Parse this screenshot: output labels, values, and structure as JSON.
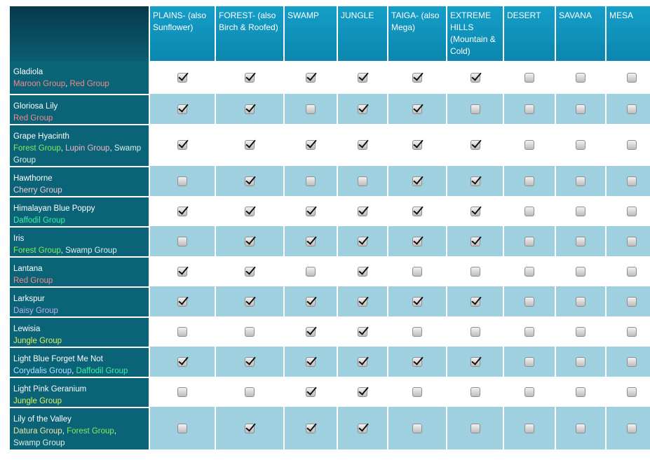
{
  "biomes": [
    "PLAINS- (also Sunflower)",
    "FOREST- (also Birch & Roofed)",
    "SWAMP",
    "JUNGLE",
    "TAIGA- (also Mega)",
    "EXTREME HILLS (Mountain & Cold)",
    "DESERT",
    "SAVANA",
    "MESA"
  ],
  "group_colors": {
    "Maroon Group": "#f08a8a",
    "Red Group": "#f08a8a",
    "Forest Group": "#7ef05a",
    "Lupin Group": "#f0b8c8",
    "Swamp Group": "#d9f2e8",
    "Cherry Group": "#f2c8d8",
    "Daffodil Group": "#3cf0a0",
    "Daisy Group": "#b8b0f0",
    "Jungle Group": "#d8f060",
    "Corydalis Group": "#a8e4ff",
    "Datura Group": "#f0e6a0"
  },
  "flowers": [
    {
      "name": "Gladiola",
      "groups": [
        "Maroon Group",
        "Red Group"
      ],
      "checks": [
        true,
        true,
        true,
        true,
        true,
        true,
        false,
        false,
        false
      ]
    },
    {
      "name": "Gloriosa Lily",
      "groups": [
        "Red Group"
      ],
      "checks": [
        true,
        true,
        false,
        true,
        true,
        false,
        false,
        false,
        false
      ]
    },
    {
      "name": "Grape Hyacinth",
      "groups": [
        "Forest Group",
        "Lupin Group",
        "Swamp Group"
      ],
      "checks": [
        true,
        true,
        true,
        true,
        true,
        true,
        false,
        false,
        false
      ]
    },
    {
      "name": "Hawthorne",
      "groups": [
        "Cherry Group"
      ],
      "checks": [
        false,
        true,
        false,
        false,
        true,
        true,
        false,
        false,
        false
      ]
    },
    {
      "name": "Himalayan Blue Poppy",
      "groups": [
        "Daffodil Group"
      ],
      "checks": [
        true,
        true,
        true,
        true,
        true,
        true,
        false,
        false,
        false
      ]
    },
    {
      "name": "Iris",
      "groups": [
        "Forest Group",
        "Swamp Group"
      ],
      "checks": [
        false,
        true,
        true,
        true,
        true,
        true,
        false,
        false,
        false
      ]
    },
    {
      "name": "Lantana",
      "groups": [
        "Red Group"
      ],
      "checks": [
        true,
        true,
        false,
        true,
        false,
        false,
        false,
        false,
        false
      ]
    },
    {
      "name": "Larkspur",
      "groups": [
        "Daisy Group"
      ],
      "checks": [
        true,
        true,
        true,
        true,
        true,
        true,
        false,
        false,
        false
      ]
    },
    {
      "name": "Lewisia",
      "groups": [
        "Jungle Group"
      ],
      "checks": [
        false,
        false,
        true,
        true,
        false,
        false,
        false,
        false,
        false
      ]
    },
    {
      "name": "Light Blue Forget Me Not",
      "groups": [
        "Corydalis Group",
        "Daffodil Group"
      ],
      "checks": [
        true,
        true,
        true,
        true,
        true,
        true,
        false,
        false,
        false
      ]
    },
    {
      "name": "Light Pink Geranium",
      "groups": [
        "Jungle Group"
      ],
      "checks": [
        false,
        false,
        true,
        true,
        false,
        false,
        false,
        false,
        false
      ]
    },
    {
      "name": "Lily of the Valley",
      "groups": [
        "Datura Group",
        "Forest Group",
        "Swamp Group"
      ],
      "checks": [
        false,
        true,
        true,
        true,
        false,
        false,
        false,
        false,
        false
      ]
    }
  ]
}
